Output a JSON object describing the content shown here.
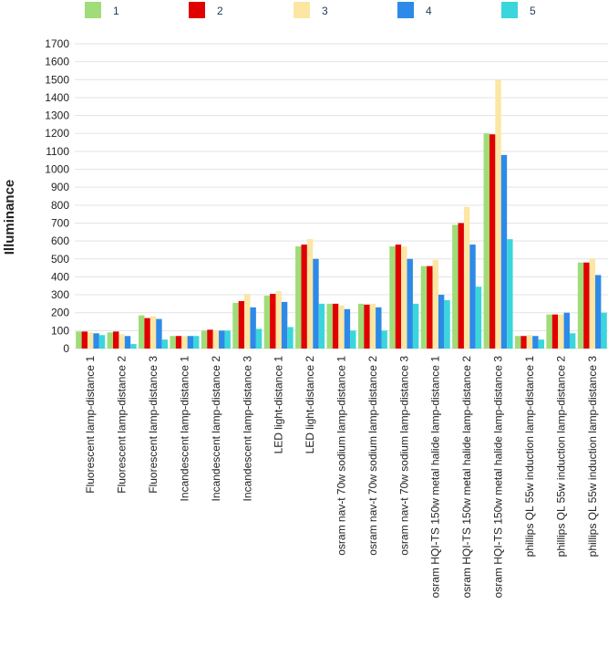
{
  "chart_data": {
    "type": "bar",
    "title": "",
    "xlabel": "",
    "ylabel": "Illuminance",
    "ylim": [
      0,
      1700
    ],
    "yticks": [
      0,
      100,
      200,
      300,
      400,
      500,
      600,
      700,
      800,
      900,
      1000,
      1100,
      1200,
      1300,
      1400,
      1500,
      1600,
      1700
    ],
    "grid": true,
    "legend_position": "top",
    "categories": [
      "Fluorescent lamp-distance 1",
      "Fluorescent lamp-distance 2",
      "Fluorescent lamp-distance 3",
      "Incandescent lamp-distance 1",
      "Incandescent lamp-distance 2",
      "Incandescent lamp-distance 3",
      "LED light-distance 1",
      "LED light-distance 2",
      "osram nav-t 70w sodium lamp-distance 1",
      "osram nav-t 70w sodium lamp-distance 2",
      "osram nav-t 70w sodium lamp-distance 3",
      "osram HQI-TS 150w metal halide lamp-distance 1",
      "osram HQI-TS 150w metal halide lamp-distance 2",
      "osram HQI-TS 150w metal halide lamp-distance 3",
      "phillips QL 55w induction lamp-distance 1",
      "phillips QL 55w induction lamp-distance 2",
      "phillips QL 55w induction lamp-distance 3"
    ],
    "series": [
      {
        "name": "1",
        "color": "#a0dc78",
        "values": [
          95,
          90,
          185,
          70,
          100,
          255,
          295,
          570,
          250,
          250,
          570,
          460,
          690,
          1200,
          70,
          190,
          480
        ]
      },
      {
        "name": "2",
        "color": "#e00000",
        "values": [
          95,
          95,
          170,
          70,
          105,
          265,
          305,
          580,
          250,
          245,
          580,
          460,
          700,
          1195,
          70,
          190,
          480
        ]
      },
      {
        "name": "3",
        "color": "#fbe6a4",
        "values": [
          90,
          80,
          180,
          70,
          100,
          305,
          320,
          610,
          240,
          250,
          570,
          495,
          790,
          1500,
          75,
          190,
          500
        ]
      },
      {
        "name": "4",
        "color": "#2e8ae8",
        "values": [
          85,
          70,
          165,
          70,
          100,
          230,
          260,
          500,
          220,
          230,
          500,
          300,
          580,
          1080,
          70,
          200,
          410
        ]
      },
      {
        "name": "5",
        "color": "#3ad6dc",
        "values": [
          75,
          25,
          50,
          70,
          100,
          110,
          120,
          250,
          100,
          100,
          250,
          270,
          345,
          610,
          50,
          85,
          200
        ]
      }
    ]
  }
}
